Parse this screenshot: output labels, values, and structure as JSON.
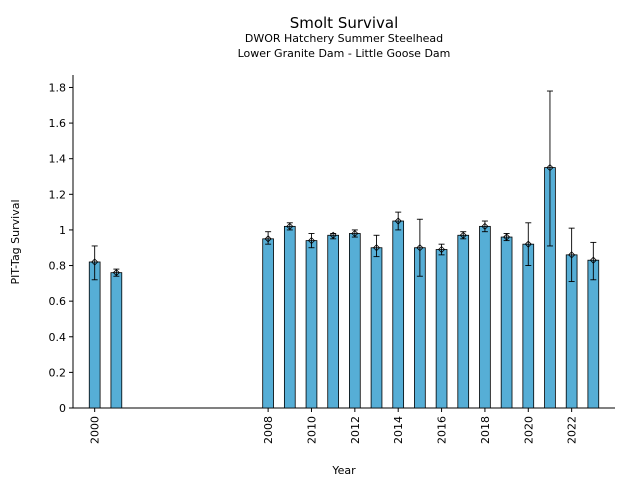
{
  "chart_data": {
    "type": "bar",
    "title": "Smolt Survival",
    "subtitle_lines": [
      "DWOR Hatchery Summer Steelhead",
      "Lower Granite Dam - Little Goose Dam"
    ],
    "xlabel": "Year",
    "ylabel": "PIT-Tag Survival",
    "xlim": [
      1999,
      2024
    ],
    "ylim": [
      0,
      1.87
    ],
    "x_ticks": [
      2000,
      2008,
      2010,
      2012,
      2014,
      2016,
      2018,
      2020,
      2022
    ],
    "y_ticks": [
      0,
      0.2,
      0.4,
      0.6,
      0.8,
      1,
      1.2,
      1.4,
      1.6,
      1.8
    ],
    "y_tick_labels": [
      "0",
      "0.2",
      "0.4",
      "0.6",
      "0.8",
      "1",
      "1.2",
      "1.4",
      "1.6",
      "1.8"
    ],
    "grid": false,
    "bar_color": "#56aed6",
    "edge_color": "#000000",
    "series": [
      {
        "x": [
          2000,
          2001,
          2008,
          2009,
          2010,
          2011,
          2012,
          2013,
          2014,
          2015,
          2016,
          2017,
          2018,
          2019,
          2020,
          2021,
          2022,
          2023
        ],
        "values": [
          0.82,
          0.76,
          0.95,
          1.02,
          0.94,
          0.97,
          0.98,
          0.9,
          1.05,
          0.9,
          0.89,
          0.97,
          1.02,
          0.96,
          0.92,
          1.35,
          0.86,
          0.83
        ],
        "err_low": [
          0.72,
          0.74,
          0.92,
          1.0,
          0.9,
          0.95,
          0.96,
          0.85,
          1.0,
          0.74,
          0.86,
          0.95,
          0.99,
          0.94,
          0.8,
          0.91,
          0.71,
          0.72
        ],
        "err_high": [
          0.91,
          0.78,
          0.99,
          1.04,
          0.98,
          0.98,
          1.0,
          0.97,
          1.1,
          1.06,
          0.92,
          0.99,
          1.05,
          0.98,
          1.04,
          1.78,
          1.01,
          0.93
        ]
      }
    ]
  }
}
